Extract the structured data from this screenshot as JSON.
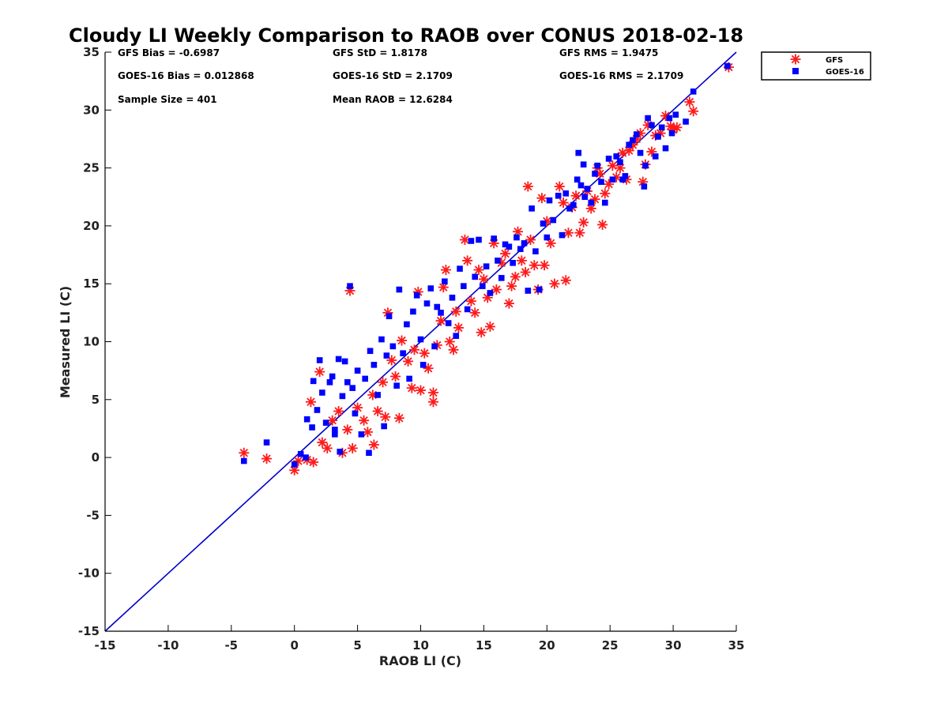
{
  "chart_data": {
    "type": "scatter",
    "title": "Cloudy LI Weekly Comparison to RAOB over CONUS 2018-02-18",
    "xlabel": "RAOB LI (C)",
    "ylabel": "Measured LI (C)",
    "xlim": [
      -15,
      35
    ],
    "ylim": [
      -15,
      35
    ],
    "xticks": [
      "-15",
      "-10",
      "-5",
      "0",
      "5",
      "10",
      "15",
      "20",
      "25",
      "30",
      "35"
    ],
    "yticks": [
      "-15",
      "-10",
      "-5",
      "0",
      "5",
      "10",
      "15",
      "20",
      "25",
      "30",
      "35"
    ],
    "grid": false,
    "legend_position": "top-right",
    "reference_line": {
      "x": [
        -15,
        35
      ],
      "y": [
        -15,
        35
      ],
      "color": "#0000cc"
    },
    "stats": [
      "GFS Bias = -0.6987",
      "GFS StD = 1.8178",
      "GFS RMS = 1.9475",
      "GOES-16 Bias = 0.012868",
      "GOES-16 StD = 2.1709",
      "GOES-16 RMS = 2.1709",
      "Sample Size = 401",
      "Mean RAOB = 12.6284"
    ],
    "series": [
      {
        "name": "GFS",
        "marker": "asterisk",
        "color": "#ff1a1a",
        "points": [
          [
            -4.0,
            0.4
          ],
          [
            -2.2,
            -0.1
          ],
          [
            0.0,
            -1.1
          ],
          [
            0.3,
            -0.3
          ],
          [
            1.0,
            -0.2
          ],
          [
            1.5,
            -0.4
          ],
          [
            1.3,
            4.8
          ],
          [
            2.0,
            7.4
          ],
          [
            2.2,
            1.3
          ],
          [
            2.6,
            0.8
          ],
          [
            3.0,
            3.2
          ],
          [
            3.5,
            4.0
          ],
          [
            3.8,
            0.4
          ],
          [
            4.2,
            2.4
          ],
          [
            4.4,
            14.4
          ],
          [
            4.6,
            0.8
          ],
          [
            5.0,
            4.3
          ],
          [
            5.5,
            3.2
          ],
          [
            5.8,
            2.2
          ],
          [
            6.2,
            5.4
          ],
          [
            6.3,
            1.1
          ],
          [
            6.6,
            4.0
          ],
          [
            7.0,
            6.5
          ],
          [
            7.2,
            3.5
          ],
          [
            7.4,
            12.5
          ],
          [
            7.7,
            8.4
          ],
          [
            8.0,
            7.0
          ],
          [
            8.3,
            3.4
          ],
          [
            8.5,
            10.1
          ],
          [
            9.0,
            8.3
          ],
          [
            9.3,
            6.0
          ],
          [
            9.5,
            9.3
          ],
          [
            9.8,
            14.3
          ],
          [
            10.0,
            5.8
          ],
          [
            10.3,
            9.0
          ],
          [
            10.6,
            7.7
          ],
          [
            11.0,
            5.6
          ],
          [
            11.0,
            4.8
          ],
          [
            11.3,
            9.7
          ],
          [
            11.6,
            11.8
          ],
          [
            11.8,
            14.7
          ],
          [
            12.0,
            16.2
          ],
          [
            12.3,
            10.0
          ],
          [
            12.6,
            9.3
          ],
          [
            12.8,
            12.6
          ],
          [
            13.0,
            11.2
          ],
          [
            13.5,
            18.8
          ],
          [
            13.7,
            17.0
          ],
          [
            14.0,
            13.5
          ],
          [
            14.3,
            12.5
          ],
          [
            14.6,
            16.2
          ],
          [
            14.8,
            10.8
          ],
          [
            15.0,
            15.4
          ],
          [
            15.3,
            13.8
          ],
          [
            15.5,
            11.3
          ],
          [
            15.8,
            18.5
          ],
          [
            16.0,
            14.5
          ],
          [
            16.4,
            16.8
          ],
          [
            16.7,
            17.6
          ],
          [
            17.0,
            13.3
          ],
          [
            17.2,
            14.8
          ],
          [
            17.5,
            15.6
          ],
          [
            17.7,
            19.5
          ],
          [
            18.0,
            17.0
          ],
          [
            18.3,
            16.0
          ],
          [
            18.5,
            23.4
          ],
          [
            18.7,
            18.8
          ],
          [
            19.0,
            16.6
          ],
          [
            19.3,
            14.5
          ],
          [
            19.6,
            22.4
          ],
          [
            19.8,
            16.6
          ],
          [
            20.0,
            20.4
          ],
          [
            20.3,
            18.5
          ],
          [
            20.6,
            15.0
          ],
          [
            21.0,
            23.4
          ],
          [
            21.3,
            22.0
          ],
          [
            21.5,
            15.3
          ],
          [
            21.7,
            19.4
          ],
          [
            22.0,
            21.6
          ],
          [
            22.3,
            22.6
          ],
          [
            22.6,
            19.4
          ],
          [
            22.9,
            20.3
          ],
          [
            23.2,
            23.0
          ],
          [
            23.5,
            21.5
          ],
          [
            23.8,
            22.3
          ],
          [
            24.0,
            25.0
          ],
          [
            24.2,
            24.5
          ],
          [
            24.4,
            20.1
          ],
          [
            24.6,
            22.8
          ],
          [
            24.9,
            23.6
          ],
          [
            25.2,
            25.2
          ],
          [
            25.5,
            24.2
          ],
          [
            25.8,
            25.0
          ],
          [
            26.0,
            26.3
          ],
          [
            26.3,
            24.0
          ],
          [
            26.5,
            26.5
          ],
          [
            26.8,
            27.0
          ],
          [
            27.1,
            27.5
          ],
          [
            27.4,
            28.0
          ],
          [
            27.6,
            23.8
          ],
          [
            27.8,
            25.3
          ],
          [
            28.0,
            28.7
          ],
          [
            28.3,
            26.4
          ],
          [
            28.6,
            27.8
          ],
          [
            29.0,
            28.0
          ],
          [
            29.4,
            29.5
          ],
          [
            29.8,
            28.6
          ],
          [
            30.0,
            28.3
          ],
          [
            30.3,
            28.5
          ],
          [
            31.3,
            30.7
          ],
          [
            31.6,
            29.9
          ],
          [
            34.4,
            33.7
          ]
        ]
      },
      {
        "name": "GOES-16",
        "marker": "square",
        "color": "#0000ff",
        "points": [
          [
            -4.0,
            -0.3
          ],
          [
            -2.2,
            1.3
          ],
          [
            0.0,
            -0.6
          ],
          [
            0.5,
            0.3
          ],
          [
            0.9,
            0.0
          ],
          [
            1.0,
            3.3
          ],
          [
            1.4,
            2.6
          ],
          [
            1.5,
            6.6
          ],
          [
            1.8,
            4.1
          ],
          [
            2.0,
            8.4
          ],
          [
            2.2,
            5.6
          ],
          [
            2.5,
            3.0
          ],
          [
            2.8,
            6.5
          ],
          [
            3.0,
            7.0
          ],
          [
            3.2,
            2.0
          ],
          [
            3.5,
            8.5
          ],
          [
            3.6,
            0.5
          ],
          [
            3.8,
            5.3
          ],
          [
            4.0,
            8.3
          ],
          [
            4.2,
            6.5
          ],
          [
            4.4,
            14.8
          ],
          [
            4.6,
            6.0
          ],
          [
            4.8,
            3.8
          ],
          [
            5.0,
            7.5
          ],
          [
            5.3,
            2.0
          ],
          [
            5.6,
            6.8
          ],
          [
            5.9,
            0.4
          ],
          [
            6.0,
            9.2
          ],
          [
            6.3,
            8.0
          ],
          [
            6.6,
            5.4
          ],
          [
            6.9,
            10.2
          ],
          [
            7.1,
            2.7
          ],
          [
            7.3,
            8.8
          ],
          [
            7.5,
            12.2
          ],
          [
            7.8,
            9.6
          ],
          [
            8.1,
            6.2
          ],
          [
            8.3,
            14.5
          ],
          [
            8.6,
            9.0
          ],
          [
            8.9,
            11.5
          ],
          [
            9.1,
            6.8
          ],
          [
            9.4,
            12.6
          ],
          [
            9.7,
            14.0
          ],
          [
            10.0,
            10.2
          ],
          [
            10.2,
            8.0
          ],
          [
            10.5,
            13.3
          ],
          [
            10.8,
            14.6
          ],
          [
            11.1,
            9.6
          ],
          [
            11.3,
            13.0
          ],
          [
            11.6,
            12.5
          ],
          [
            11.9,
            15.2
          ],
          [
            12.2,
            11.6
          ],
          [
            12.5,
            13.8
          ],
          [
            12.8,
            10.5
          ],
          [
            13.1,
            16.3
          ],
          [
            13.4,
            14.8
          ],
          [
            13.7,
            12.8
          ],
          [
            14.0,
            18.7
          ],
          [
            14.3,
            15.6
          ],
          [
            14.6,
            18.8
          ],
          [
            14.9,
            14.8
          ],
          [
            15.2,
            16.5
          ],
          [
            15.5,
            14.2
          ],
          [
            15.8,
            18.9
          ],
          [
            16.1,
            17.0
          ],
          [
            16.4,
            15.5
          ],
          [
            16.7,
            18.4
          ],
          [
            17.0,
            18.2
          ],
          [
            17.3,
            16.8
          ],
          [
            17.6,
            19.0
          ],
          [
            17.9,
            18.0
          ],
          [
            18.2,
            18.5
          ],
          [
            18.5,
            14.4
          ],
          [
            18.8,
            21.5
          ],
          [
            19.1,
            17.8
          ],
          [
            19.4,
            14.5
          ],
          [
            19.7,
            20.2
          ],
          [
            20.0,
            19.0
          ],
          [
            20.2,
            22.2
          ],
          [
            20.5,
            20.5
          ],
          [
            20.9,
            22.6
          ],
          [
            21.2,
            19.2
          ],
          [
            21.5,
            22.8
          ],
          [
            21.8,
            21.5
          ],
          [
            22.1,
            21.8
          ],
          [
            22.4,
            24.0
          ],
          [
            22.7,
            23.5
          ],
          [
            22.9,
            25.3
          ],
          [
            23.2,
            23.2
          ],
          [
            23.5,
            22.0
          ],
          [
            23.8,
            24.5
          ],
          [
            24.0,
            25.2
          ],
          [
            24.3,
            23.8
          ],
          [
            24.6,
            22.0
          ],
          [
            24.9,
            25.8
          ],
          [
            25.2,
            24.0
          ],
          [
            25.5,
            26.0
          ],
          [
            25.8,
            25.5
          ],
          [
            26.0,
            24.0
          ],
          [
            26.2,
            24.3
          ],
          [
            26.5,
            27.0
          ],
          [
            26.8,
            27.4
          ],
          [
            27.1,
            27.9
          ],
          [
            27.4,
            26.3
          ],
          [
            27.7,
            23.4
          ],
          [
            27.8,
            25.2
          ],
          [
            28.0,
            29.3
          ],
          [
            28.3,
            28.7
          ],
          [
            28.6,
            26.0
          ],
          [
            28.8,
            27.7
          ],
          [
            29.1,
            28.5
          ],
          [
            29.4,
            26.7
          ],
          [
            29.7,
            29.3
          ],
          [
            29.9,
            28.0
          ],
          [
            30.2,
            29.6
          ],
          [
            31.0,
            29.0
          ],
          [
            31.6,
            31.6
          ],
          [
            34.3,
            33.8
          ],
          [
            22.5,
            26.3
          ],
          [
            23.0,
            22.5
          ],
          [
            3.2,
            2.4
          ]
        ]
      }
    ]
  }
}
